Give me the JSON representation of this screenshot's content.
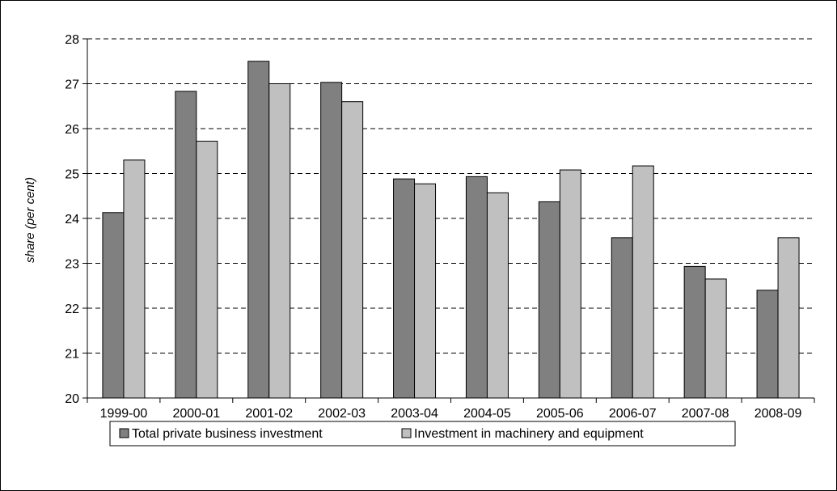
{
  "chart_data": {
    "type": "bar",
    "title": "",
    "xlabel": "",
    "ylabel": "share (per cent)",
    "ylim": [
      20,
      28
    ],
    "yticks": [
      20,
      21,
      22,
      23,
      24,
      25,
      26,
      27,
      28
    ],
    "grid": "horizontal dashed",
    "legend_position": "bottom",
    "categories": [
      "1999-00",
      "2000-01",
      "2001-02",
      "2002-03",
      "2003-04",
      "2004-05",
      "2005-06",
      "2006-07",
      "2007-08",
      "2008-09"
    ],
    "series": [
      {
        "name": "Total private business investment",
        "color": "#808080",
        "values": [
          24.13,
          26.83,
          27.5,
          27.03,
          24.88,
          24.93,
          24.37,
          23.57,
          22.93,
          22.4
        ]
      },
      {
        "name": "Investment in machinery and equipment",
        "color": "#c0c0c0",
        "values": [
          25.3,
          25.72,
          27.0,
          26.6,
          24.77,
          24.57,
          25.08,
          25.17,
          22.65,
          23.57
        ]
      }
    ]
  }
}
